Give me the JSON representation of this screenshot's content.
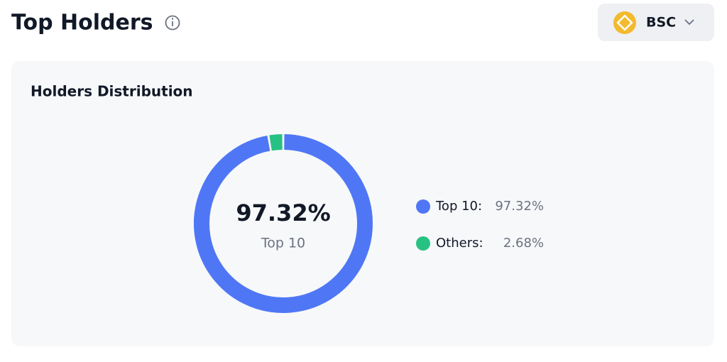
{
  "header": {
    "title": "Top Holders",
    "network": "BSC"
  },
  "chart_data": {
    "type": "donut",
    "title": "Holders Distribution",
    "categories": [
      "Top 10:",
      "Others:"
    ],
    "values": [
      97.32,
      2.68
    ],
    "value_labels": [
      "97.32%",
      "2.68%"
    ],
    "colors": [
      "#4f77f5",
      "#27c283"
    ],
    "center_value": "97.32%",
    "center_label": "Top 10"
  }
}
